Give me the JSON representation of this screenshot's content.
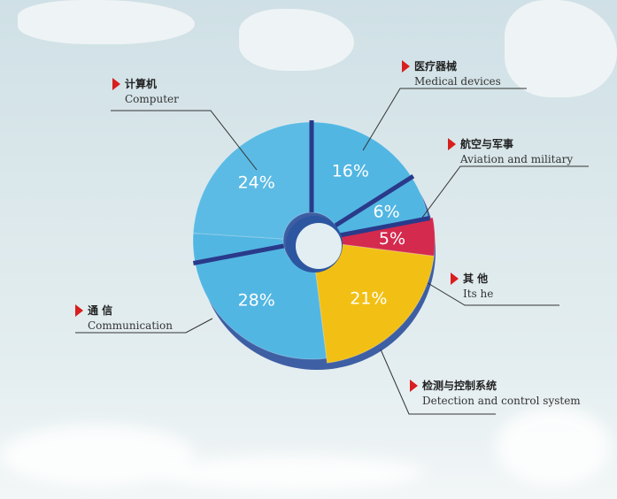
{
  "chart_data": {
    "type": "pie",
    "donut": true,
    "slices": [
      {
        "label_cn": "医疗器械",
        "label_en": "Medical devices",
        "value": 16,
        "label": "16%",
        "color": "#52b6e2"
      },
      {
        "label_cn": "航空与军事",
        "label_en": "Aviation and military",
        "value": 6,
        "label": "6%",
        "color": "#52b6e2"
      },
      {
        "label_cn": "其 他",
        "label_en": "Its he",
        "value": 5,
        "label": "5%",
        "color": "#d42a4e"
      },
      {
        "label_cn": "检测与控制系统",
        "label_en": "Detection and control system",
        "value": 21,
        "label": "21%",
        "color": "#f2c014"
      },
      {
        "label_cn": "通 信",
        "label_en": "Communication",
        "value": 28,
        "label": "28%",
        "color": "#52b6e2"
      },
      {
        "label_cn": "计算机",
        "label_en": "Computer",
        "value": 24,
        "label": "24%",
        "color": "#5bbbe4"
      }
    ],
    "divider_color": "#2a3a8a",
    "marker_color": "#d81e1e"
  }
}
